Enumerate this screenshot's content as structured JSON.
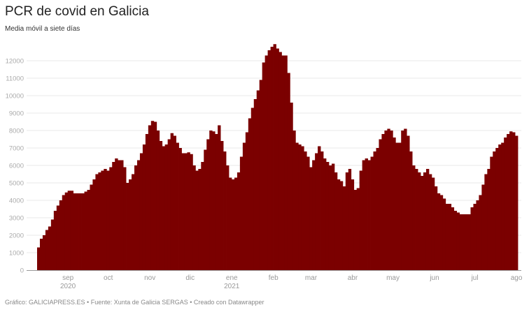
{
  "title": "PCR de covid en Galicia",
  "subtitle": "Media móvil a siete días",
  "footer": "Gráfico: GALICIAPRESS.ES • Fuente: Xunta de Galicia SERGAS • Creado con Datawrapper",
  "colors": {
    "bars": "#7b0000",
    "grid": "#e8e8e8",
    "axis": "#999999"
  },
  "chart_data": {
    "type": "bar",
    "title": "PCR de covid en Galicia",
    "subtitle": "Media móvil a siete días",
    "x_start": "2020-08-09",
    "x_end": "2021-08-02",
    "ylim": [
      0,
      12950
    ],
    "grid": true,
    "y_ticks": [
      "0",
      "1000",
      "2000",
      "3000",
      "4000",
      "5000",
      "6000",
      "7000",
      "8000",
      "9000",
      "10000",
      "11000",
      "12000"
    ],
    "x_ticks": [
      {
        "label": "sep",
        "sub": "2020",
        "date": "2020-09-01"
      },
      {
        "label": "oct",
        "sub": "",
        "date": "2020-10-01"
      },
      {
        "label": "nov",
        "sub": "",
        "date": "2020-11-01"
      },
      {
        "label": "dic",
        "sub": "",
        "date": "2020-12-01"
      },
      {
        "label": "ene",
        "sub": "2021",
        "date": "2021-01-01"
      },
      {
        "label": "feb",
        "sub": "",
        "date": "2021-02-01"
      },
      {
        "label": "mar",
        "sub": "",
        "date": "2021-03-01"
      },
      {
        "label": "abr",
        "sub": "",
        "date": "2021-04-01"
      },
      {
        "label": "may",
        "sub": "",
        "date": "2021-05-01"
      },
      {
        "label": "jun",
        "sub": "",
        "date": "2021-06-01"
      },
      {
        "label": "jul",
        "sub": "",
        "date": "2021-07-01"
      },
      {
        "label": "ago",
        "sub": "",
        "date": "2021-08-01"
      }
    ],
    "values": [
      1300,
      1800,
      2000,
      2300,
      2500,
      2900,
      3400,
      3700,
      4000,
      4300,
      4450,
      4550,
      4550,
      4400,
      4400,
      4400,
      4400,
      4500,
      4600,
      4900,
      5200,
      5500,
      5600,
      5700,
      5800,
      5700,
      5900,
      6200,
      6400,
      6300,
      6300,
      5900,
      5000,
      5200,
      5500,
      6000,
      6300,
      6700,
      7200,
      7800,
      8300,
      8550,
      8500,
      8000,
      7400,
      7100,
      7200,
      7500,
      7850,
      7700,
      7300,
      7000,
      6700,
      6700,
      6750,
      6650,
      6000,
      5700,
      5800,
      6200,
      6900,
      7500,
      8000,
      7950,
      7800,
      8300,
      7400,
      6800,
      6000,
      5300,
      5200,
      5300,
      5600,
      6500,
      7300,
      7900,
      8700,
      9300,
      9800,
      10300,
      10900,
      11900,
      12300,
      12600,
      12800,
      12950,
      12700,
      12500,
      12300,
      12300,
      11300,
      9600,
      8000,
      7300,
      7200,
      7100,
      6800,
      6500,
      5900,
      6300,
      6700,
      7100,
      6800,
      6400,
      6200,
      6000,
      6100,
      5600,
      5200,
      5100,
      4800,
      5600,
      5800,
      5200,
      4600,
      4700,
      5700,
      6300,
      6400,
      6300,
      6500,
      6800,
      7000,
      7500,
      7800,
      8000,
      8100,
      8000,
      7600,
      7300,
      7300,
      8000,
      8100,
      7700,
      6800,
      6000,
      5800,
      5600,
      5400,
      5600,
      5800,
      5500,
      5300,
      4800,
      4400,
      4300,
      4100,
      3800,
      3800,
      3600,
      3400,
      3300,
      3200,
      3200,
      3200,
      3200,
      3600,
      3800,
      4000,
      4300,
      4900,
      5500,
      5800,
      6500,
      6800,
      7000,
      7200,
      7300,
      7600,
      7800,
      7950,
      7900,
      7700
    ]
  }
}
